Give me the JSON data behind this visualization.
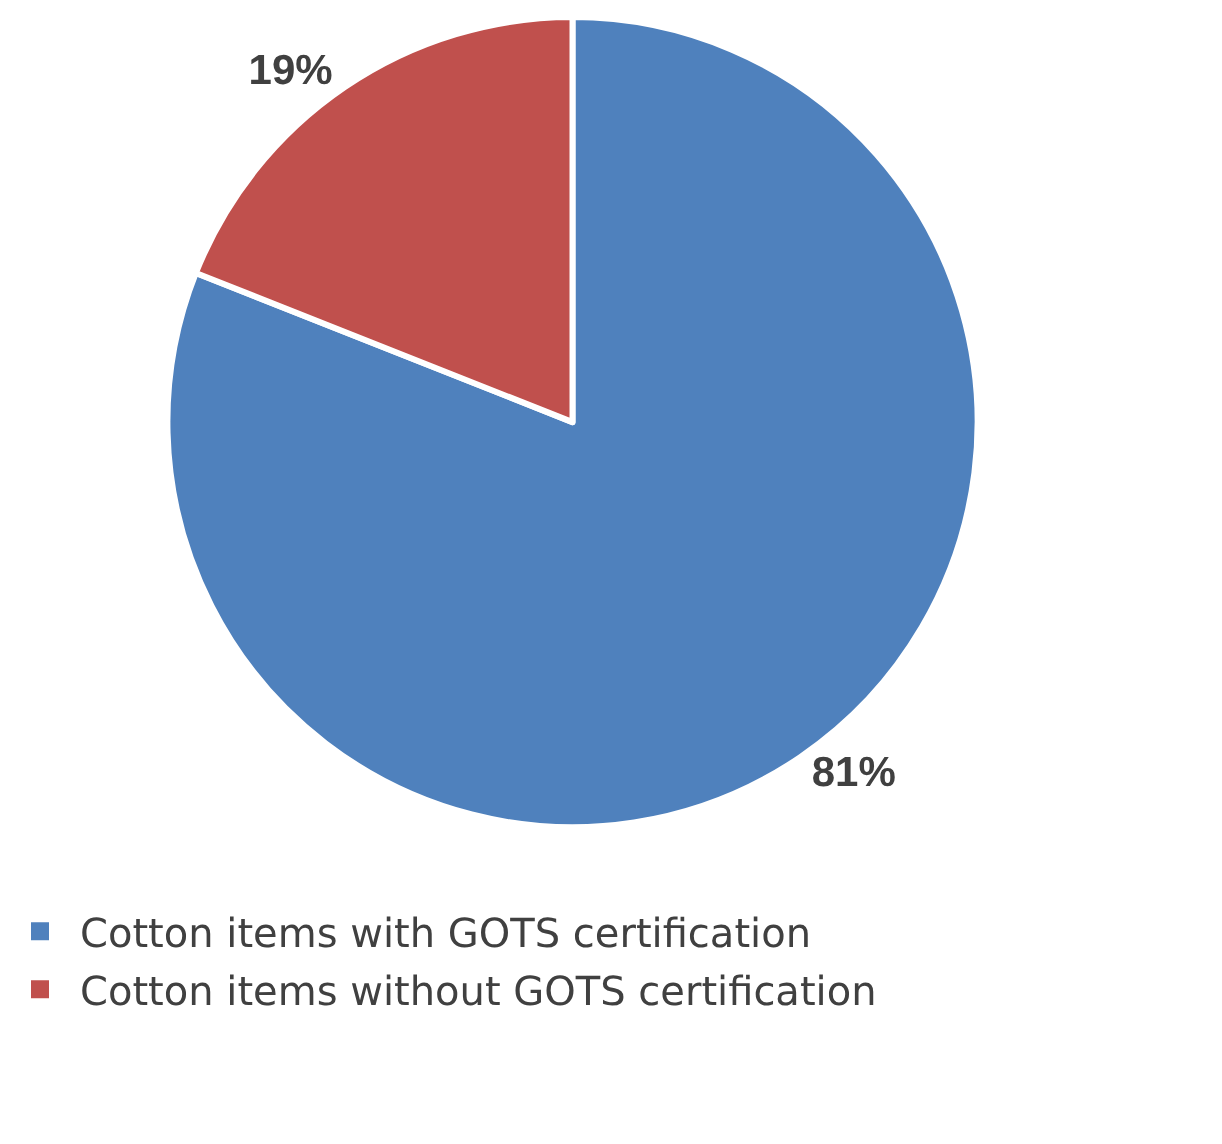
{
  "chart_data": {
    "type": "pie",
    "categories": [
      "Cotton items with GOTS certification",
      "Cotton items without GOTS certification"
    ],
    "values": [
      81,
      19
    ],
    "colors": [
      "#4f81bd",
      "#c0504d"
    ],
    "value_labels": [
      "81%",
      "19%"
    ],
    "legend": "bottom"
  }
}
